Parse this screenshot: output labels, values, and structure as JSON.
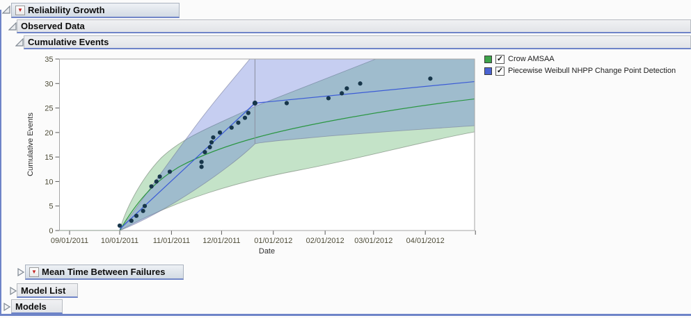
{
  "outline": {
    "reliability_growth": {
      "label": "Reliability Growth",
      "state": "open",
      "has_red_triangle": true
    },
    "observed_data": {
      "label": "Observed Data",
      "state": "open"
    },
    "cumulative_events": {
      "label": "Cumulative Events",
      "state": "open"
    },
    "mean_time_between_failures": {
      "label": "Mean Time Between Failures",
      "state": "closed",
      "has_red_triangle": true
    },
    "model_list": {
      "label": "Model List",
      "state": "closed"
    },
    "models": {
      "label": "Models",
      "state": "closed"
    }
  },
  "legend": {
    "items": [
      {
        "label": "Crow AMSAA",
        "color": "#3da34a",
        "checked": true,
        "check_glyph": "✓"
      },
      {
        "label": "Piecewise Weibull NHPP Change Point Detection",
        "color": "#4a63d2",
        "checked": true,
        "check_glyph": "✓"
      }
    ]
  },
  "chart_data": {
    "type": "scatter",
    "title": "Cumulative Events",
    "xlabel": "Date",
    "ylabel": "Cumulative Events",
    "ylim": [
      0,
      35
    ],
    "grid": false,
    "legend_position": "top-right",
    "y_ticks": [
      0,
      5,
      10,
      15,
      20,
      25,
      30,
      35
    ],
    "x_ticks": [
      "09/01/2011",
      "10/01/2011",
      "11/01/2011",
      "12/01/2011",
      "01/01/2012",
      "02/01/2012",
      "03/01/2012",
      "04/01/2012"
    ],
    "x_range": [
      "08/25/2011",
      "05/01/2012"
    ],
    "series": [
      {
        "name": "Crow AMSAA",
        "color": "#2a9641",
        "band_fill": "rgba(61,163,74,0.30)",
        "kind": "fit-line-with-confidence-band"
      },
      {
        "name": "Piecewise Weibull NHPP Change Point Detection",
        "color": "#3b5bd6",
        "band_fill": "rgba(91,116,214,0.35)",
        "kind": "piecewise-fit-line-with-confidence-band"
      }
    ],
    "change_point": {
      "date": "12/21/2011",
      "value": 26
    },
    "points": [
      {
        "date": "10/01/2011",
        "value": 1
      },
      {
        "date": "10/08/2011",
        "value": 2
      },
      {
        "date": "10/11/2011",
        "value": 3
      },
      {
        "date": "10/15/2011",
        "value": 4
      },
      {
        "date": "10/16/2011",
        "value": 5
      },
      {
        "date": "10/20/2011",
        "value": 9
      },
      {
        "date": "10/23/2011",
        "value": 10
      },
      {
        "date": "10/25/2011",
        "value": 11
      },
      {
        "date": "10/31/2011",
        "value": 12
      },
      {
        "date": "11/19/2011",
        "value": 13
      },
      {
        "date": "11/19/2011",
        "value": 14
      },
      {
        "date": "11/21/2011",
        "value": 16
      },
      {
        "date": "11/24/2011",
        "value": 17
      },
      {
        "date": "11/25/2011",
        "value": 18
      },
      {
        "date": "11/26/2011",
        "value": 19
      },
      {
        "date": "11/30/2011",
        "value": 20
      },
      {
        "date": "12/07/2011",
        "value": 21
      },
      {
        "date": "12/11/2011",
        "value": 22
      },
      {
        "date": "12/15/2011",
        "value": 23
      },
      {
        "date": "12/17/2011",
        "value": 24
      },
      {
        "date": "12/21/2011",
        "value": 26
      },
      {
        "date": "01/09/2012",
        "value": 26
      },
      {
        "date": "02/03/2012",
        "value": 27
      },
      {
        "date": "02/11/2012",
        "value": 28
      },
      {
        "date": "02/14/2012",
        "value": 29
      },
      {
        "date": "02/22/2012",
        "value": 30
      },
      {
        "date": "04/04/2012",
        "value": 31
      }
    ]
  }
}
